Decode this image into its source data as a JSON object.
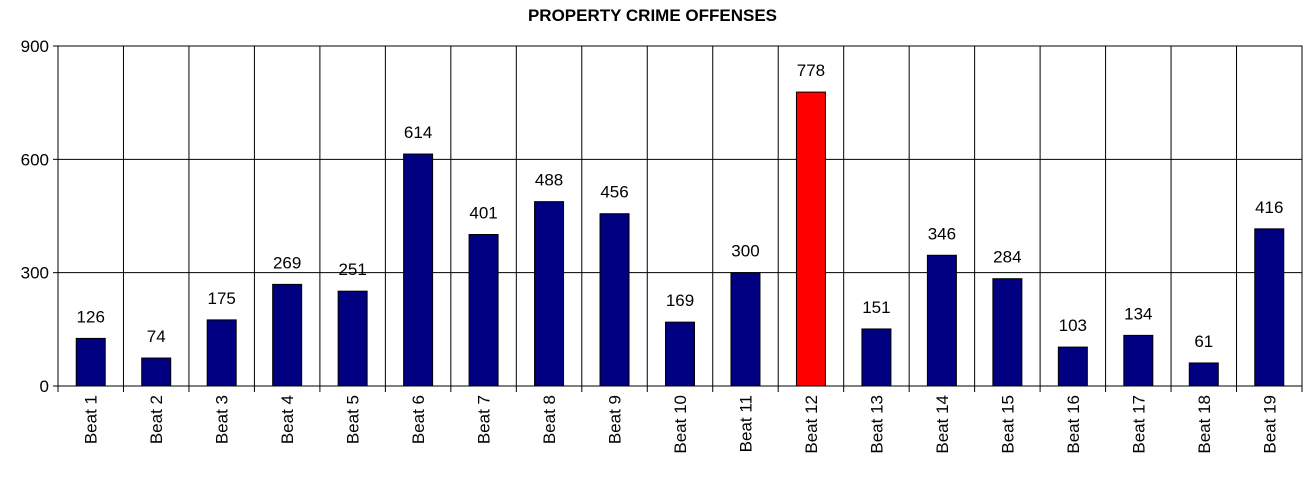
{
  "chart_data": {
    "type": "bar",
    "title": "PROPERTY CRIME OFFENSES",
    "xlabel": "",
    "ylabel": "",
    "categories": [
      "Beat 1",
      "Beat 2",
      "Beat 3",
      "Beat 4",
      "Beat 5",
      "Beat 6",
      "Beat 7",
      "Beat 8",
      "Beat 9",
      "Beat 10",
      "Beat 11",
      "Beat 12",
      "Beat 13",
      "Beat 14",
      "Beat 15",
      "Beat 16",
      "Beat 17",
      "Beat 18",
      "Beat 19"
    ],
    "values": [
      126,
      74,
      175,
      269,
      251,
      614,
      401,
      488,
      456,
      169,
      300,
      778,
      151,
      346,
      284,
      103,
      134,
      61,
      416
    ],
    "ylim": [
      0,
      900
    ],
    "yticks": [
      0,
      300,
      600,
      900
    ],
    "grid": true,
    "bar_color": "#000080",
    "highlight_color": "#ff0000",
    "highlight_index": 11
  }
}
